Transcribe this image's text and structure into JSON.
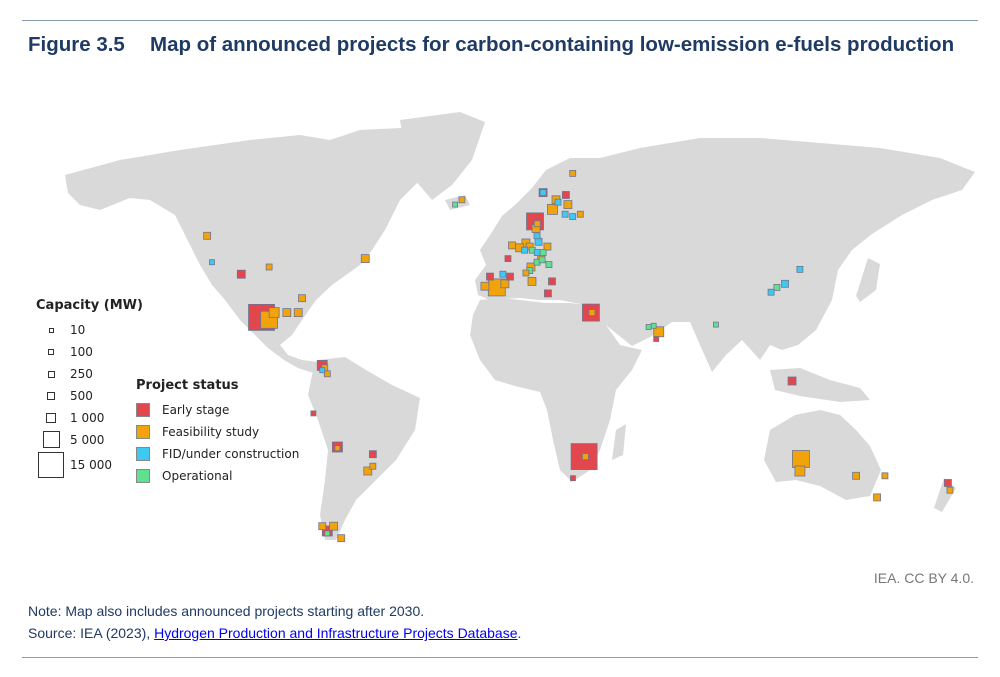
{
  "title": {
    "number": "Figure 3.5",
    "text": "Map of announced projects for carbon-containing low-emission e-fuels production"
  },
  "legend": {
    "capacity_title": "Capacity (MW)",
    "capacity_items": [
      {
        "label": "10",
        "mw": 10
      },
      {
        "label": "100",
        "mw": 100
      },
      {
        "label": "250",
        "mw": 250
      },
      {
        "label": "500",
        "mw": 500
      },
      {
        "label": "1 000",
        "mw": 1000
      },
      {
        "label": "5 000",
        "mw": 5000
      },
      {
        "label": "15 000",
        "mw": 15000
      }
    ],
    "status_title": "Project status",
    "status_items": [
      {
        "key": "early",
        "label": "Early stage",
        "color": "#e2474d"
      },
      {
        "key": "feas",
        "label": "Feasibility study",
        "color": "#f0a30a"
      },
      {
        "key": "fid",
        "label": "FID/under construction",
        "color": "#3ec8f2"
      },
      {
        "key": "op",
        "label": "Operational",
        "color": "#62e08f"
      }
    ]
  },
  "colors": {
    "land": "#d9d9d9",
    "marker_border": "#6f7590",
    "title": "#1f3a63"
  },
  "projects": [
    {
      "lon": -120.5,
      "lat": 63,
      "mw": 250,
      "status": "feas"
    },
    {
      "lon": -118.6,
      "lat": 52,
      "mw": 10,
      "status": "fid"
    },
    {
      "lon": -107,
      "lat": 47,
      "mw": 500,
      "status": "early"
    },
    {
      "lon": -96,
      "lat": 50,
      "mw": 100,
      "status": "feas"
    },
    {
      "lon": -58,
      "lat": 53.5,
      "mw": 500,
      "status": "feas"
    },
    {
      "lon": -99,
      "lat": 29,
      "mw": 15000,
      "status": "early"
    },
    {
      "lon": -96,
      "lat": 28,
      "mw": 5000,
      "status": "feas"
    },
    {
      "lon": -94,
      "lat": 31,
      "mw": 1000,
      "status": "feas"
    },
    {
      "lon": -89,
      "lat": 31,
      "mw": 500,
      "status": "feas"
    },
    {
      "lon": -84.5,
      "lat": 31,
      "mw": 500,
      "status": "feas"
    },
    {
      "lon": -83,
      "lat": 37,
      "mw": 250,
      "status": "feas"
    },
    {
      "lon": -75,
      "lat": 9,
      "mw": 1000,
      "status": "early"
    },
    {
      "lon": -74,
      "lat": 8,
      "mw": 100,
      "status": "feas"
    },
    {
      "lon": -75,
      "lat": 7,
      "mw": 10,
      "status": "fid"
    },
    {
      "lon": -73,
      "lat": 5.5,
      "mw": 100,
      "status": "feas"
    },
    {
      "lon": -78.5,
      "lat": -11,
      "mw": 10,
      "status": "early"
    },
    {
      "lon": -69,
      "lat": -25,
      "mw": 1000,
      "status": "early"
    },
    {
      "lon": -69,
      "lat": -25.5,
      "mw": 10,
      "status": "feas"
    },
    {
      "lon": -55,
      "lat": -28,
      "mw": 250,
      "status": "early"
    },
    {
      "lon": -57,
      "lat": -35,
      "mw": 500,
      "status": "feas"
    },
    {
      "lon": -55,
      "lat": -33,
      "mw": 100,
      "status": "feas"
    },
    {
      "lon": -73,
      "lat": -60,
      "mw": 1000,
      "status": "early"
    },
    {
      "lon": -70.5,
      "lat": -58,
      "mw": 500,
      "status": "feas"
    },
    {
      "lon": -67.5,
      "lat": -63,
      "mw": 250,
      "status": "feas"
    },
    {
      "lon": -75,
      "lat": -58,
      "mw": 250,
      "status": "feas"
    },
    {
      "lon": -73,
      "lat": -61,
      "mw": 10,
      "status": "op"
    },
    {
      "lon": -22.5,
      "lat": 76,
      "mw": 10,
      "status": "op"
    },
    {
      "lon": -19.8,
      "lat": 78,
      "mw": 100,
      "status": "feas"
    },
    {
      "lon": 24,
      "lat": 89,
      "mw": 100,
      "status": "feas"
    },
    {
      "lon": 12.3,
      "lat": 81,
      "mw": 500,
      "status": "early"
    },
    {
      "lon": 12.3,
      "lat": 81,
      "mw": 100,
      "status": "fid"
    },
    {
      "lon": 21.3,
      "lat": 80,
      "mw": 250,
      "status": "early"
    },
    {
      "lon": 17.4,
      "lat": 78,
      "mw": 500,
      "status": "feas"
    },
    {
      "lon": 16,
      "lat": 74,
      "mw": 1000,
      "status": "feas"
    },
    {
      "lon": 22.1,
      "lat": 76,
      "mw": 500,
      "status": "feas"
    },
    {
      "lon": 18.2,
      "lat": 77,
      "mw": 100,
      "status": "fid"
    },
    {
      "lon": 21,
      "lat": 72,
      "mw": 100,
      "status": "fid"
    },
    {
      "lon": 24,
      "lat": 71,
      "mw": 100,
      "status": "fid"
    },
    {
      "lon": 27,
      "lat": 72,
      "mw": 100,
      "status": "feas"
    },
    {
      "lon": 9.1,
      "lat": 69,
      "mw": 5000,
      "status": "early"
    },
    {
      "lon": 9.5,
      "lat": 66,
      "mw": 500,
      "status": "feas"
    },
    {
      "lon": 10,
      "lat": 68,
      "mw": 100,
      "status": "feas"
    },
    {
      "lon": 9.9,
      "lat": 63,
      "mw": 100,
      "status": "fid"
    },
    {
      "lon": 10.5,
      "lat": 60.5,
      "mw": 250,
      "status": "fid"
    },
    {
      "lon": 5.5,
      "lat": 60,
      "mw": 500,
      "status": "feas"
    },
    {
      "lon": 0,
      "lat": 59,
      "mw": 250,
      "status": "feas"
    },
    {
      "lon": 3,
      "lat": 58,
      "mw": 500,
      "status": "feas"
    },
    {
      "lon": 5,
      "lat": 57,
      "mw": 100,
      "status": "fid"
    },
    {
      "lon": 7,
      "lat": 58.5,
      "mw": 250,
      "status": "feas"
    },
    {
      "lon": 8,
      "lat": 57,
      "mw": 100,
      "status": "op"
    },
    {
      "lon": 10,
      "lat": 56,
      "mw": 100,
      "status": "fid"
    },
    {
      "lon": 12.3,
      "lat": 56,
      "mw": 100,
      "status": "op"
    },
    {
      "lon": 11.5,
      "lat": 54,
      "mw": 250,
      "status": "feas"
    },
    {
      "lon": 14,
      "lat": 58.5,
      "mw": 250,
      "status": "feas"
    },
    {
      "lon": -1.6,
      "lat": 53.5,
      "mw": 100,
      "status": "early"
    },
    {
      "lon": 7.5,
      "lat": 50,
      "mw": 500,
      "status": "feas"
    },
    {
      "lon": 7,
      "lat": 48.5,
      "mw": 100,
      "status": "op"
    },
    {
      "lon": 9.9,
      "lat": 52,
      "mw": 100,
      "status": "op"
    },
    {
      "lon": 11.9,
      "lat": 53,
      "mw": 100,
      "status": "op"
    },
    {
      "lon": 14.6,
      "lat": 51,
      "mw": 100,
      "status": "op"
    },
    {
      "lon": 5.5,
      "lat": 47.5,
      "mw": 100,
      "status": "feas"
    },
    {
      "lon": 7.9,
      "lat": 44,
      "mw": 500,
      "status": "feas"
    },
    {
      "lon": -6,
      "lat": 41.5,
      "mw": 5000,
      "status": "feas"
    },
    {
      "lon": -8.7,
      "lat": 46,
      "mw": 250,
      "status": "early"
    },
    {
      "lon": -0.8,
      "lat": 46,
      "mw": 250,
      "status": "early"
    },
    {
      "lon": -2.8,
      "lat": 43,
      "mw": 500,
      "status": "feas"
    },
    {
      "lon": -10.7,
      "lat": 42,
      "mw": 500,
      "status": "feas"
    },
    {
      "lon": -3.6,
      "lat": 47,
      "mw": 100,
      "status": "fid"
    },
    {
      "lon": 15.8,
      "lat": 44,
      "mw": 250,
      "status": "early"
    },
    {
      "lon": 14.2,
      "lat": 39,
      "mw": 250,
      "status": "early"
    },
    {
      "lon": 31.2,
      "lat": 31,
      "mw": 5000,
      "status": "early"
    },
    {
      "lon": 31.6,
      "lat": 31,
      "mw": 100,
      "status": "feas"
    },
    {
      "lon": 58,
      "lat": 23,
      "mw": 1000,
      "status": "feas"
    },
    {
      "lon": 56,
      "lat": 25.5,
      "mw": 10,
      "status": "op"
    },
    {
      "lon": 54,
      "lat": 25,
      "mw": 10,
      "status": "op"
    },
    {
      "lon": 57,
      "lat": 20,
      "mw": 10,
      "status": "early"
    },
    {
      "lon": 80.6,
      "lat": 26,
      "mw": 10,
      "status": "op"
    },
    {
      "lon": 107.9,
      "lat": 43,
      "mw": 250,
      "status": "fid"
    },
    {
      "lon": 113.8,
      "lat": 49,
      "mw": 100,
      "status": "fid"
    },
    {
      "lon": 104.7,
      "lat": 41.5,
      "mw": 100,
      "status": "op"
    },
    {
      "lon": 102.4,
      "lat": 39.5,
      "mw": 100,
      "status": "fid"
    },
    {
      "lon": 110.7,
      "lat": 2.5,
      "mw": 500,
      "status": "early"
    },
    {
      "lon": 28.5,
      "lat": -29,
      "mw": 15000,
      "status": "early"
    },
    {
      "lon": 29,
      "lat": -29,
      "mw": 100,
      "status": "feas"
    },
    {
      "lon": 24.1,
      "lat": -38,
      "mw": 10,
      "status": "early"
    },
    {
      "lon": 114.2,
      "lat": -30,
      "mw": 5000,
      "status": "feas"
    },
    {
      "lon": 113.8,
      "lat": -35,
      "mw": 1000,
      "status": "feas"
    },
    {
      "lon": 136,
      "lat": -37,
      "mw": 250,
      "status": "feas"
    },
    {
      "lon": 144.3,
      "lat": -46,
      "mw": 250,
      "status": "feas"
    },
    {
      "lon": 147.4,
      "lat": -37,
      "mw": 100,
      "status": "feas"
    },
    {
      "lon": 172.3,
      "lat": -40,
      "mw": 250,
      "status": "early"
    },
    {
      "lon": 173.1,
      "lat": -43,
      "mw": 100,
      "status": "feas"
    }
  ],
  "credit": "IEA. CC BY 4.0.",
  "note": "Note: Map also includes announced projects starting after 2030.",
  "source": {
    "prefix": "Source: IEA (2023), ",
    "link": "Hydrogen Production and Infrastructure Projects Database",
    "suffix": "."
  }
}
